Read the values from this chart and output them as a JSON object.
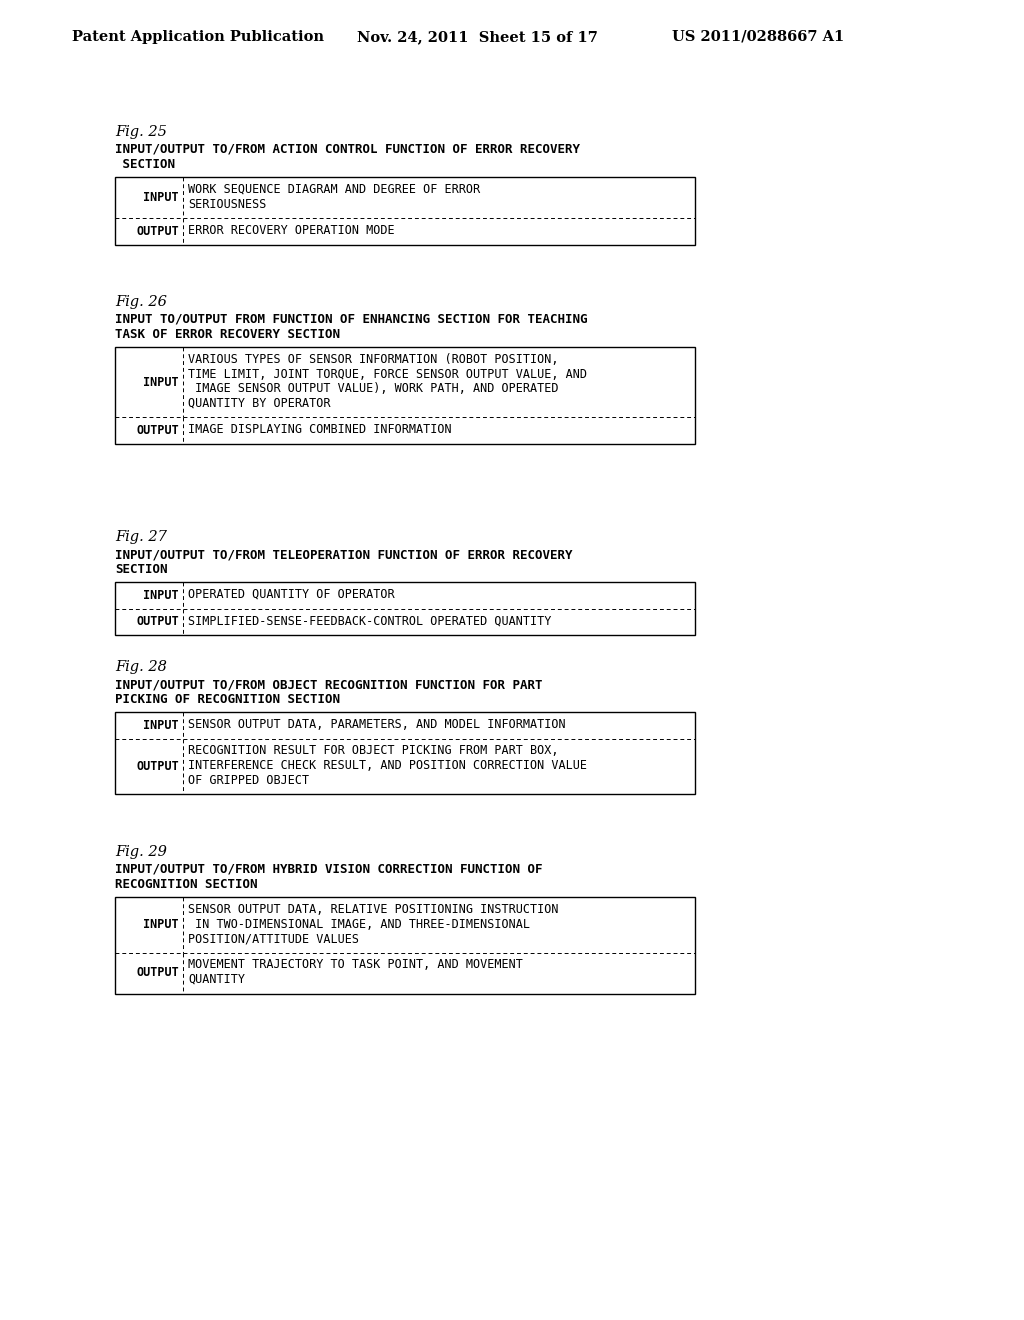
{
  "background_color": "#ffffff",
  "header_left": "Patent Application Publication",
  "header_mid": "Nov. 24, 2011  Sheet 15 of 17",
  "header_right": "US 2011/0288667 A1",
  "figures": [
    {
      "fig_label": "Fig. 25",
      "title_lines": [
        "INPUT/OUTPUT TO/FROM ACTION CONTROL FUNCTION OF ERROR RECOVERY",
        " SECTION"
      ],
      "rows": [
        {
          "label": "INPUT",
          "text_lines": [
            "WORK SEQUENCE DIAGRAM AND DEGREE OF ERROR",
            "SERIOUSNESS"
          ]
        },
        {
          "label": "OUTPUT",
          "text_lines": [
            "ERROR RECOVERY OPERATION MODE"
          ]
        }
      ]
    },
    {
      "fig_label": "Fig. 26",
      "title_lines": [
        "INPUT TO/OUTPUT FROM FUNCTION OF ENHANCING SECTION FOR TEACHING",
        "TASK OF ERROR RECOVERY SECTION"
      ],
      "rows": [
        {
          "label": "INPUT",
          "text_lines": [
            "VARIOUS TYPES OF SENSOR INFORMATION (ROBOT POSITION,",
            "TIME LIMIT, JOINT TORQUE, FORCE SENSOR OUTPUT VALUE, AND",
            " IMAGE SENSOR OUTPUT VALUE), WORK PATH, AND OPERATED",
            "QUANTITY BY OPERATOR"
          ]
        },
        {
          "label": "OUTPUT",
          "text_lines": [
            "IMAGE DISPLAYING COMBINED INFORMATION"
          ]
        }
      ]
    },
    {
      "fig_label": "Fig. 27",
      "title_lines": [
        "INPUT/OUTPUT TO/FROM TELEOPERATION FUNCTION OF ERROR RECOVERY",
        "SECTION"
      ],
      "rows": [
        {
          "label": "INPUT",
          "text_lines": [
            "OPERATED QUANTITY OF OPERATOR"
          ]
        },
        {
          "label": "OUTPUT",
          "text_lines": [
            "SIMPLIFIED-SENSE-FEEDBACK-CONTROL OPERATED QUANTITY"
          ]
        }
      ]
    },
    {
      "fig_label": "Fig. 28",
      "title_lines": [
        "INPUT/OUTPUT TO/FROM OBJECT RECOGNITION FUNCTION FOR PART",
        "PICKING OF RECOGNITION SECTION"
      ],
      "rows": [
        {
          "label": "INPUT",
          "text_lines": [
            "SENSOR OUTPUT DATA, PARAMETERS, AND MODEL INFORMATION"
          ]
        },
        {
          "label": "OUTPUT",
          "text_lines": [
            "RECOGNITION RESULT FOR OBJECT PICKING FROM PART BOX,",
            "INTERFERENCE CHECK RESULT, AND POSITION CORRECTION VALUE",
            "OF GRIPPED OBJECT"
          ]
        }
      ]
    },
    {
      "fig_label": "Fig. 29",
      "title_lines": [
        "INPUT/OUTPUT TO/FROM HYBRID VISION CORRECTION FUNCTION OF",
        "RECOGNITION SECTION"
      ],
      "rows": [
        {
          "label": "INPUT",
          "text_lines": [
            "SENSOR OUTPUT DATA, RELATIVE POSITIONING INSTRUCTION",
            " IN TWO-DIMENSIONAL IMAGE, AND THREE-DIMENSIONAL",
            "POSITION/ATTITUDE VALUES"
          ]
        },
        {
          "label": "OUTPUT",
          "text_lines": [
            "MOVEMENT TRAJECTORY TO TASK POINT, AND MOVEMENT",
            "QUANTITY"
          ]
        }
      ]
    }
  ]
}
